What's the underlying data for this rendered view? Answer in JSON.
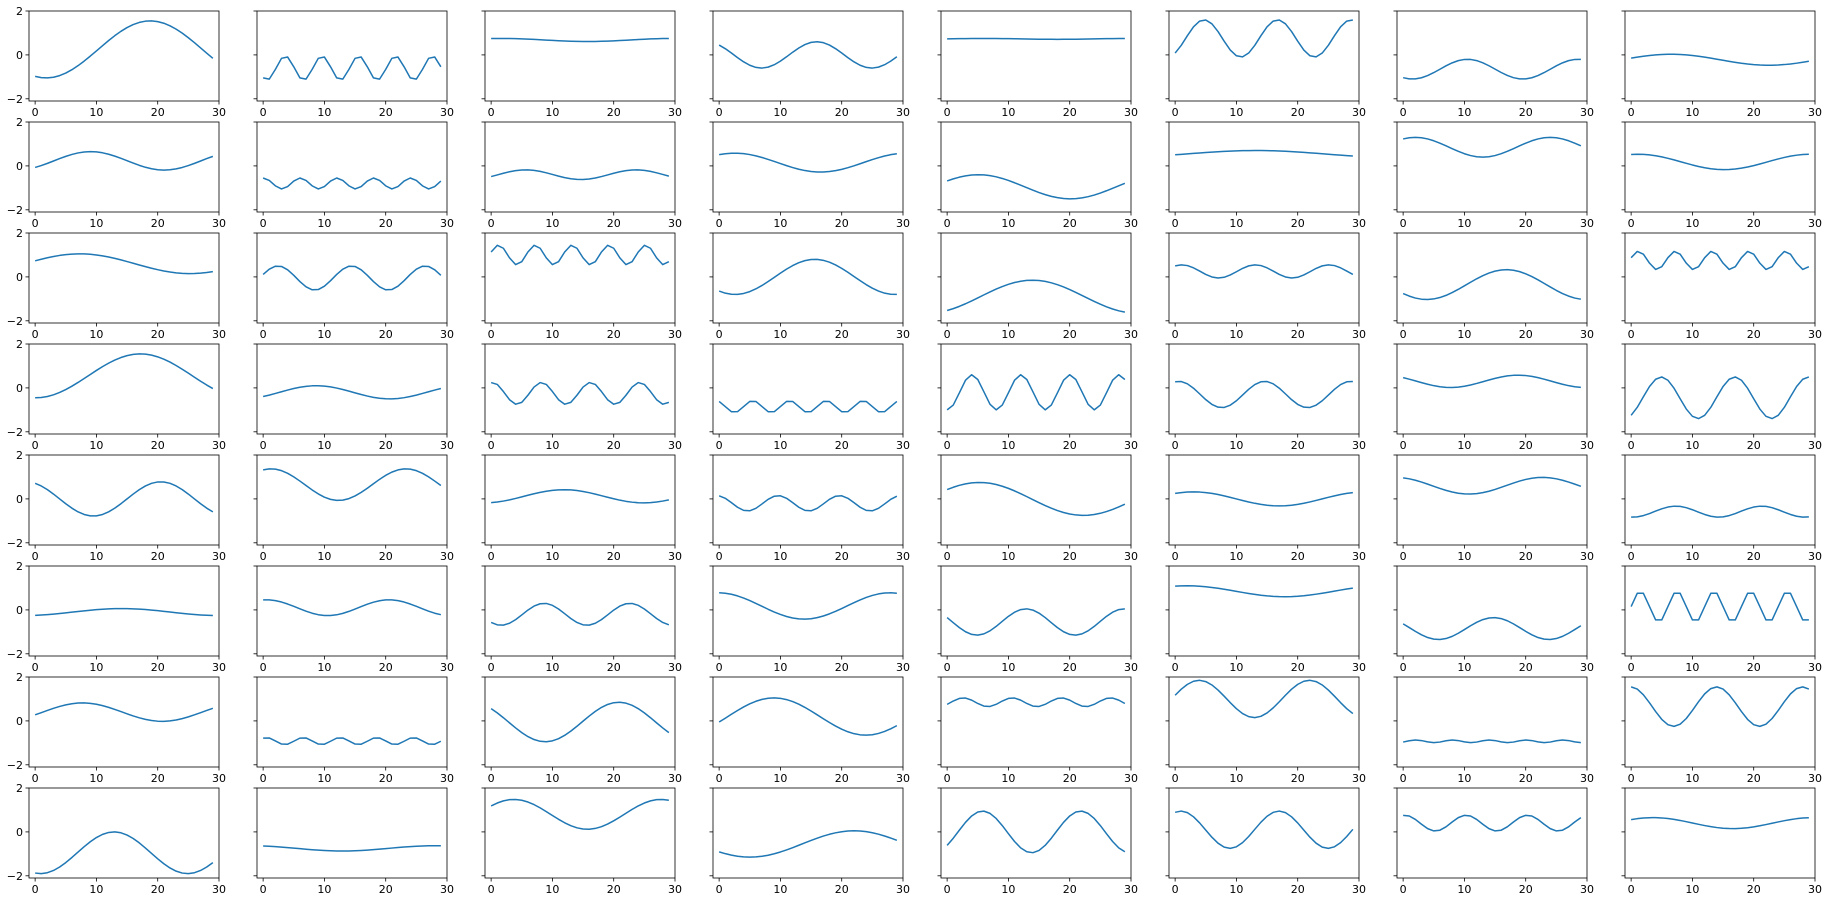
{
  "theme": {
    "line_color": "#1f77b4",
    "axes_color": "#000000",
    "background": "#ffffff"
  },
  "chart_data": {
    "type": "line",
    "layout": {
      "rows": 8,
      "cols": 8,
      "sharey": "row"
    },
    "x": [
      0,
      1,
      2,
      3,
      4,
      5,
      6,
      7,
      8,
      9,
      10,
      11,
      12,
      13,
      14,
      15,
      16,
      17,
      18,
      19,
      20,
      21,
      22,
      23,
      24,
      25,
      26,
      27,
      28,
      29
    ],
    "xlim": [
      -1,
      30
    ],
    "ylim": [
      -2.1,
      2.0
    ],
    "xticks": [
      0,
      10,
      20,
      30
    ],
    "yticks": [
      -2,
      0,
      2
    ],
    "xtick_labels": [
      "0",
      "10",
      "20",
      "30"
    ],
    "ytick_labels": [
      "−2",
      "0",
      "2"
    ],
    "note": "Each subplot plots y = offset + amp*sin(2πx/period + phase) for x = 0..29",
    "panels": [
      {
        "offset": 0.25,
        "amp": 1.3,
        "period": 34,
        "phase": -1.9
      },
      {
        "offset": -0.6,
        "amp": 0.55,
        "period": 6,
        "phase": -2.2
      },
      {
        "offset": 0.68,
        "amp": 0.07,
        "period": 28,
        "phase": 1.2
      },
      {
        "offset": 0.0,
        "amp": 0.6,
        "period": 18,
        "phase": 2.3
      },
      {
        "offset": 0.73,
        "amp": 0.02,
        "period": 24,
        "phase": 0
      },
      {
        "offset": 0.75,
        "amp": 0.85,
        "period": 12,
        "phase": -0.9
      },
      {
        "offset": -0.65,
        "amp": 0.45,
        "period": 18,
        "phase": -2.1
      },
      {
        "offset": -0.22,
        "amp": 0.25,
        "period": 32,
        "phase": 0.3
      },
      {
        "offset": 0.23,
        "amp": 0.42,
        "period": 24,
        "phase": -0.8
      },
      {
        "offset": -0.8,
        "amp": 0.25,
        "period": 6,
        "phase": 1.5
      },
      {
        "offset": -0.4,
        "amp": 0.22,
        "period": 18,
        "phase": -0.4
      },
      {
        "offset": 0.15,
        "amp": 0.43,
        "period": 28,
        "phase": 1.0
      },
      {
        "offset": -0.95,
        "amp": 0.55,
        "period": 30,
        "phase": 0.5
      },
      {
        "offset": 0.55,
        "amp": 0.15,
        "period": 44,
        "phase": -0.3
      },
      {
        "offset": 0.85,
        "amp": 0.45,
        "period": 22,
        "phase": 1.0
      },
      {
        "offset": 0.18,
        "amp": 0.35,
        "period": 28,
        "phase": 1.3
      },
      {
        "offset": 0.6,
        "amp": 0.45,
        "period": 36,
        "phase": 0.3
      },
      {
        "offset": -0.05,
        "amp": 0.55,
        "period": 12,
        "phase": 0.3
      },
      {
        "offset": 1.0,
        "amp": 0.45,
        "period": 6,
        "phase": 0.3
      },
      {
        "offset": 0.0,
        "amp": 0.8,
        "period": 26,
        "phase": -2.2
      },
      {
        "offset": -0.9,
        "amp": 0.75,
        "period": 34,
        "phase": -1.0
      },
      {
        "offset": 0.25,
        "amp": 0.3,
        "period": 12,
        "phase": 1.0
      },
      {
        "offset": -0.35,
        "amp": 0.68,
        "period": 26,
        "phase": -2.5
      },
      {
        "offset": 0.75,
        "amp": 0.42,
        "period": 6,
        "phase": 0.3
      },
      {
        "offset": 0.55,
        "amp": 1.0,
        "period": 34,
        "phase": -1.6
      },
      {
        "offset": -0.2,
        "amp": 0.3,
        "period": 24,
        "phase": -0.7
      },
      {
        "offset": -0.25,
        "amp": 0.5,
        "period": 8,
        "phase": 1.4
      },
      {
        "offset": -0.85,
        "amp": 0.27,
        "period": 6,
        "phase": 2.1
      },
      {
        "offset": -0.2,
        "amp": 0.8,
        "period": 8,
        "phase": -1.6
      },
      {
        "offset": -0.3,
        "amp": 0.6,
        "period": 14,
        "phase": 1.3
      },
      {
        "offset": 0.3,
        "amp": 0.28,
        "period": 22,
        "phase": 2.5
      },
      {
        "offset": -0.45,
        "amp": 0.95,
        "period": 12,
        "phase": -1.0
      },
      {
        "offset": 0.0,
        "amp": 0.78,
        "period": 22,
        "phase": 2.0
      },
      {
        "offset": 0.65,
        "amp": 0.72,
        "period": 22,
        "phase": 1.2
      },
      {
        "offset": 0.12,
        "amp": 0.3,
        "period": 26,
        "phase": -1.3
      },
      {
        "offset": -0.2,
        "amp": 0.35,
        "period": 10,
        "phase": 1.8
      },
      {
        "offset": 0.0,
        "amp": 0.75,
        "period": 34,
        "phase": 0.6
      },
      {
        "offset": 0.0,
        "amp": 0.32,
        "period": 28,
        "phase": 0.9
      },
      {
        "offset": 0.6,
        "amp": 0.38,
        "period": 24,
        "phase": 1.9
      },
      {
        "offset": -0.58,
        "amp": 0.25,
        "period": 14,
        "phase": -1.7
      },
      {
        "offset": -0.1,
        "amp": 0.16,
        "period": 32,
        "phase": -1.2
      },
      {
        "offset": 0.1,
        "amp": 0.36,
        "period": 20,
        "phase": 1.4
      },
      {
        "offset": -0.2,
        "amp": 0.5,
        "period": 14,
        "phase": -2.3
      },
      {
        "offset": 0.18,
        "amp": 0.6,
        "period": 28,
        "phase": 1.6
      },
      {
        "offset": -0.55,
        "amp": 0.6,
        "period": 16,
        "phase": 2.8
      },
      {
        "offset": 0.85,
        "amp": 0.25,
        "period": 32,
        "phase": 1.2
      },
      {
        "offset": -0.85,
        "amp": 0.5,
        "period": 18,
        "phase": 2.7
      },
      {
        "offset": 0.15,
        "amp": 0.7,
        "period": 6,
        "phase": 0.0
      },
      {
        "offset": 0.4,
        "amp": 0.42,
        "period": 26,
        "phase": -0.3
      },
      {
        "offset": -0.92,
        "amp": 0.16,
        "period": 6,
        "phase": 1.0
      },
      {
        "offset": -0.05,
        "amp": 0.9,
        "period": 24,
        "phase": 2.4
      },
      {
        "offset": 0.2,
        "amp": 0.85,
        "period": 30,
        "phase": -0.3
      },
      {
        "offset": 0.85,
        "amp": 0.2,
        "period": 8,
        "phase": -0.5
      },
      {
        "offset": 1.0,
        "amp": 0.85,
        "period": 18,
        "phase": 0.2
      },
      {
        "offset": -0.93,
        "amp": 0.06,
        "period": 6,
        "phase": -0.6
      },
      {
        "offset": 0.65,
        "amp": 0.9,
        "period": 14,
        "phase": 1.6
      },
      {
        "offset": -0.95,
        "amp": 0.95,
        "period": 24,
        "phase": -1.8
      },
      {
        "offset": -0.75,
        "amp": 0.12,
        "period": 30,
        "phase": 2.0
      },
      {
        "offset": 0.8,
        "amp": 0.68,
        "period": 24,
        "phase": 0.6
      },
      {
        "offset": -0.55,
        "amp": 0.6,
        "period": 34,
        "phase": -2.5
      },
      {
        "offset": 0.0,
        "amp": 0.95,
        "period": 16,
        "phase": -0.7
      },
      {
        "offset": 0.1,
        "amp": 0.85,
        "period": 16,
        "phase": 1.2
      },
      {
        "offset": 0.4,
        "amp": 0.36,
        "period": 10,
        "phase": 1.4
      },
      {
        "offset": 0.4,
        "amp": 0.25,
        "period": 26,
        "phase": 0.7
      }
    ]
  }
}
